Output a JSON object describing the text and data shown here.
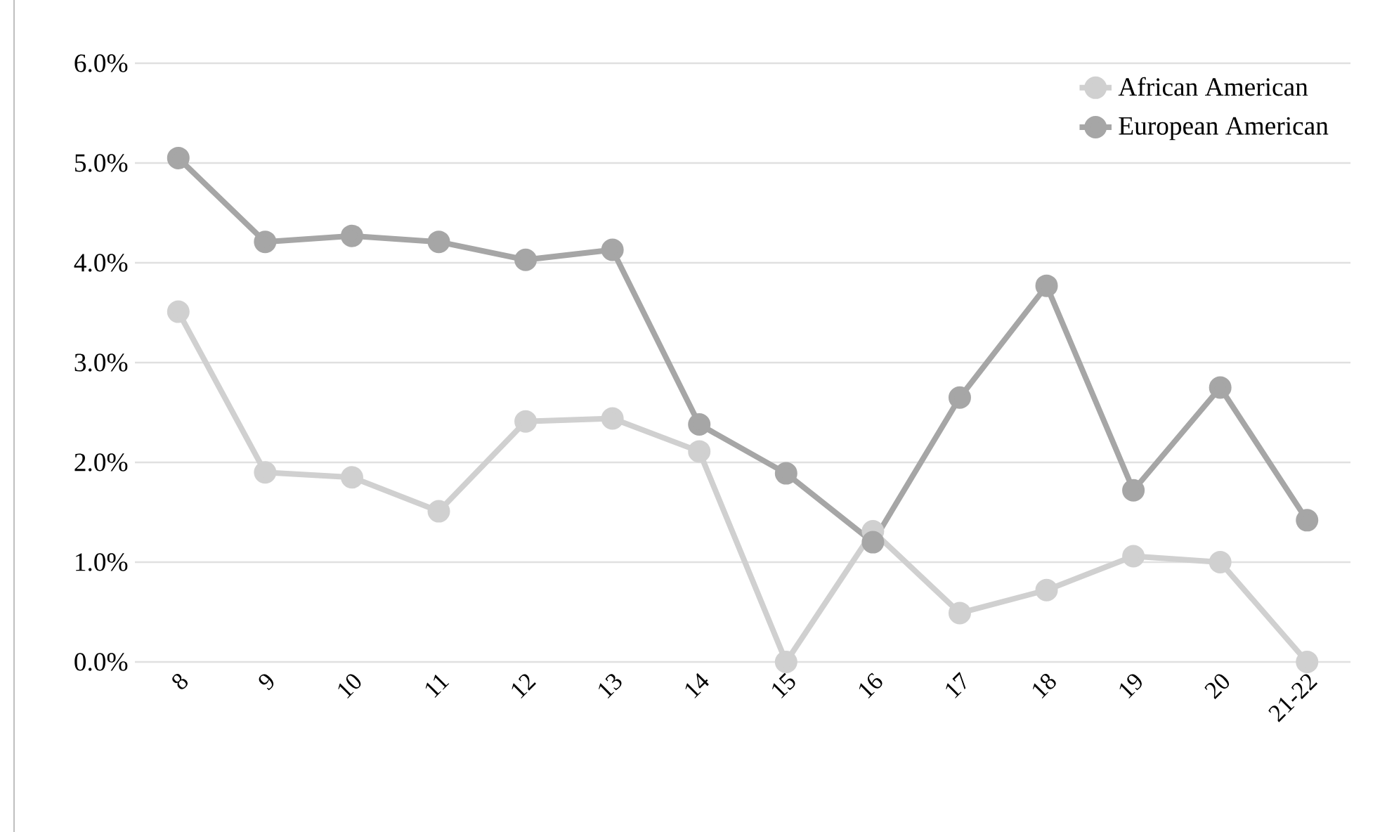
{
  "chart_data": {
    "type": "line",
    "categories": [
      "8",
      "9",
      "10",
      "11",
      "12",
      "13",
      "14",
      "15",
      "16",
      "17",
      "18",
      "19",
      "20",
      "21-22"
    ],
    "series": [
      {
        "name": "African American",
        "color": "#d0d0d0",
        "values": [
          3.51,
          1.9,
          1.85,
          1.51,
          2.41,
          2.44,
          2.11,
          0,
          1.31,
          0.49,
          0.72,
          1.06,
          1.0,
          0
        ]
      },
      {
        "name": "European American",
        "color": "#a6a6a6",
        "values": [
          5.05,
          4.21,
          4.27,
          4.21,
          4.03,
          4.13,
          2.38,
          1.89,
          1.2,
          2.65,
          3.77,
          1.72,
          2.75,
          1.42
        ]
      }
    ],
    "ylim": [
      0,
      6
    ],
    "yticks": [
      {
        "value": 0,
        "label": "0.0%"
      },
      {
        "value": 1,
        "label": "1.0%"
      },
      {
        "value": 2,
        "label": "2.0%"
      },
      {
        "value": 3,
        "label": "3.0%"
      },
      {
        "value": 4,
        "label": "4.0%"
      },
      {
        "value": 5,
        "label": "5.0%"
      },
      {
        "value": 6,
        "label": "6.0%"
      }
    ],
    "grid": "y",
    "legend": "top right",
    "marker": "circle",
    "line_style": "solid"
  }
}
